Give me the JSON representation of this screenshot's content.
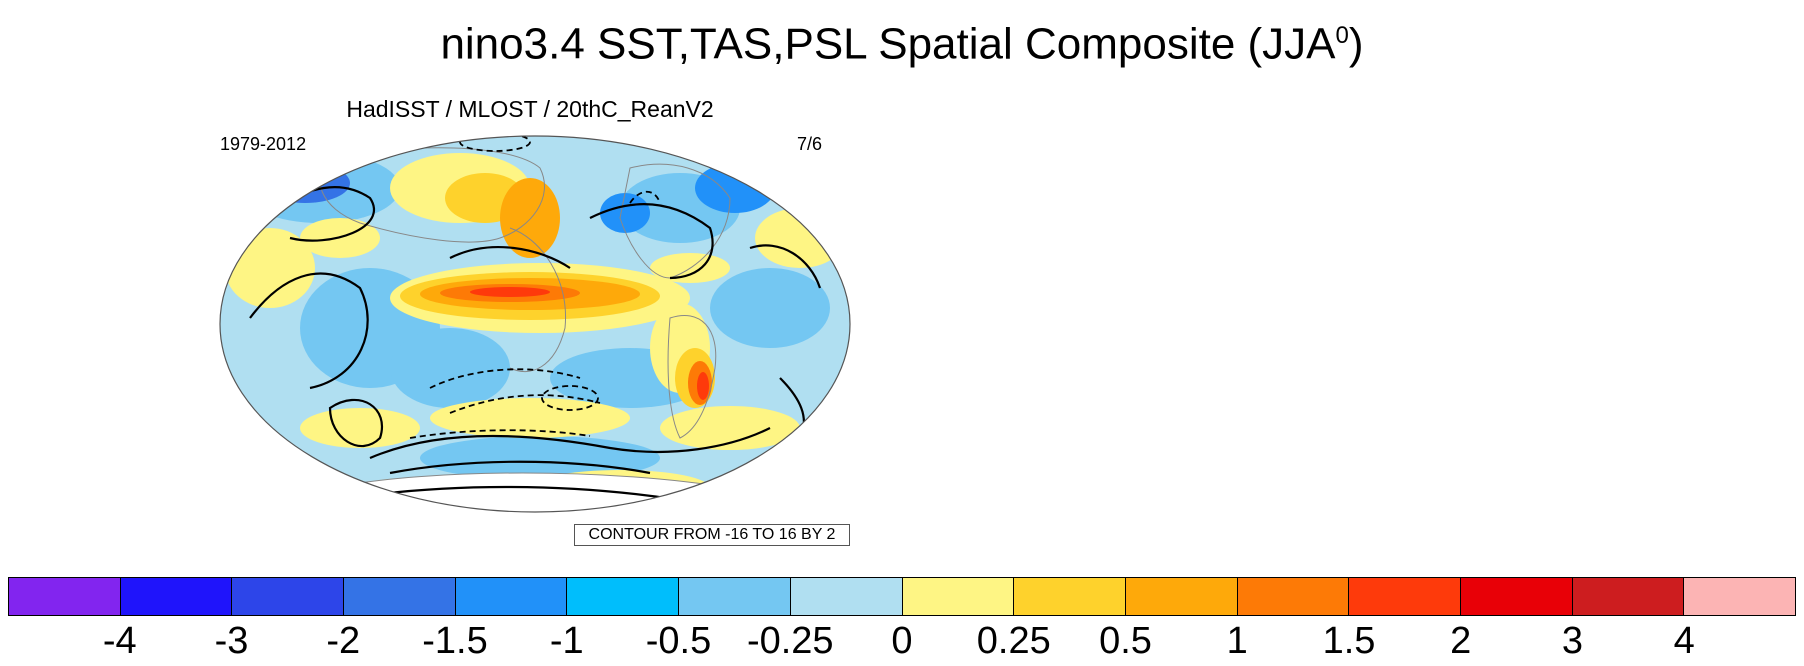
{
  "title": "nino3.4 SST,TAS,PSL Spatial Composite (JJA",
  "title_sup": "0",
  "title_end": ")",
  "panel": {
    "subtitle": "HadISST / MLOST / 20thC_ReanV2",
    "left_label": "1979-2012",
    "right_label": "7/6",
    "contour_info": "CONTOUR FROM -16 TO 16 BY 2"
  },
  "colorbar": {
    "colors": [
      "#8225ef",
      "#1f14fb",
      "#2d45e9",
      "#3473e6",
      "#2191f9",
      "#00befc",
      "#74c7f2",
      "#b0dff1",
      "#fef584",
      "#fed22c",
      "#fea90a",
      "#fd7a06",
      "#fe3a0b",
      "#e80007",
      "#cd1d1f",
      "#fcb4b4"
    ],
    "labels": [
      "-4",
      "-3",
      "-2",
      "-1.5",
      "-1",
      "-0.5",
      "-0.25",
      "0",
      "0.25",
      "0.5",
      "1",
      "1.5",
      "2",
      "3",
      "4"
    ]
  }
}
